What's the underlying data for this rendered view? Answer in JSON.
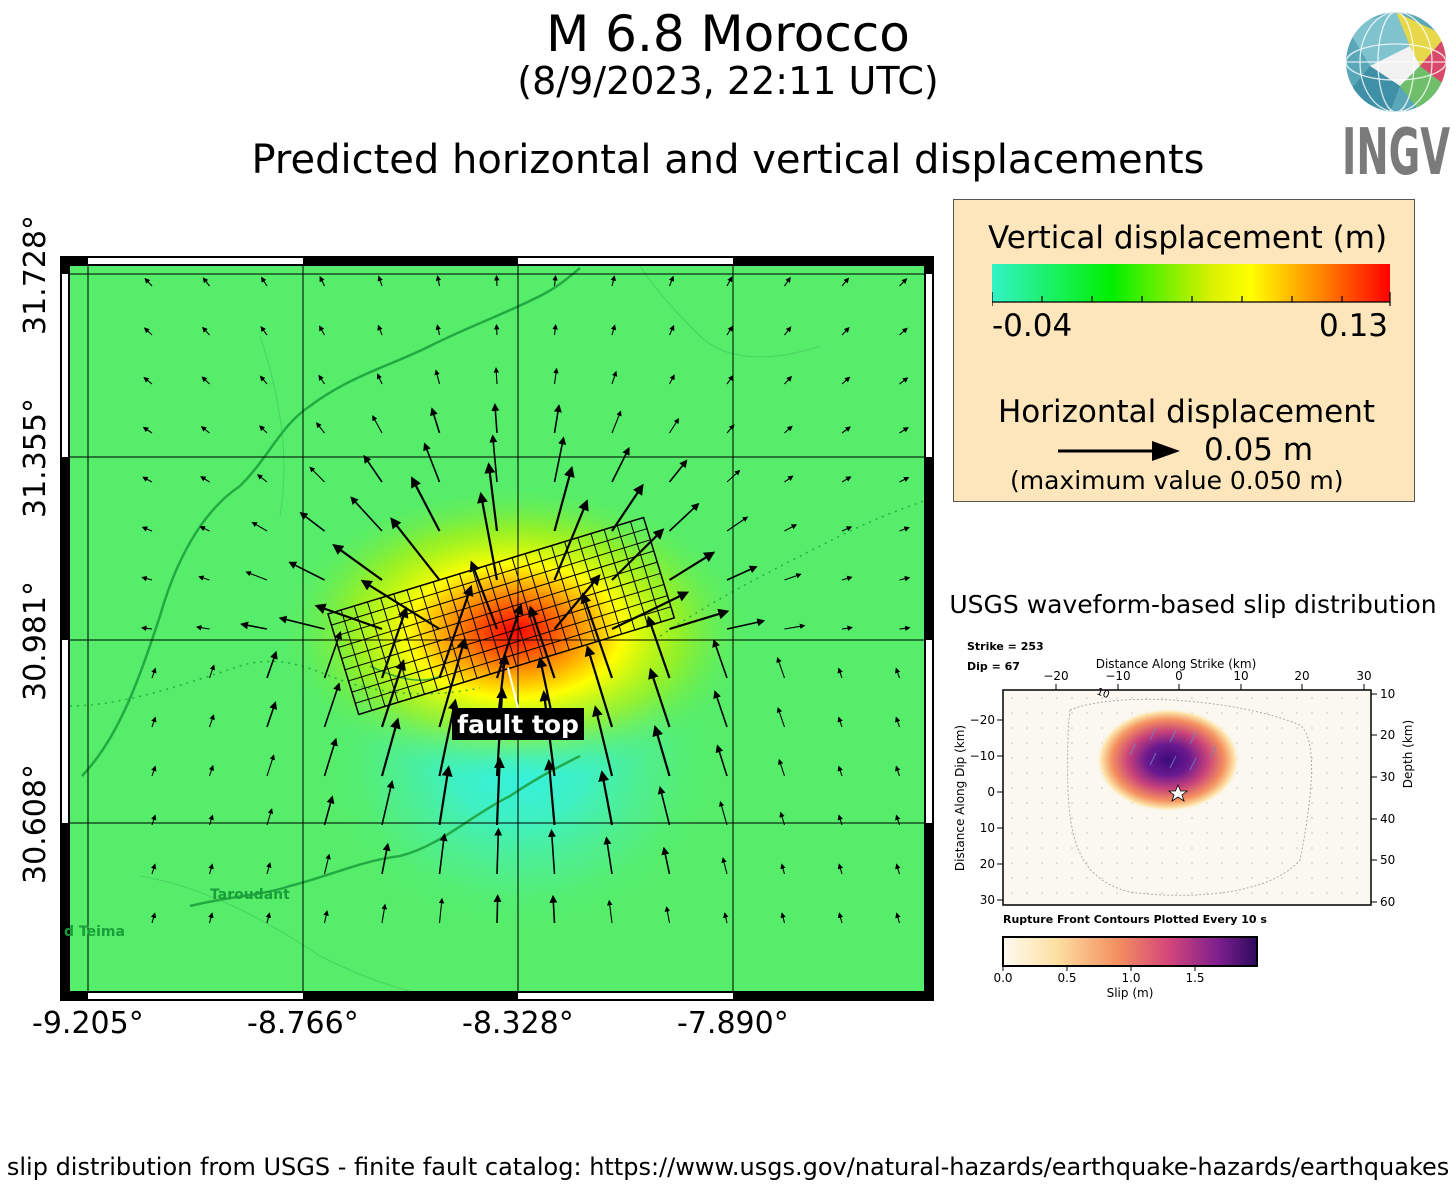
{
  "header": {
    "title": "M 6.8 Morocco",
    "datetime": "(8/9/2023, 22:11 UTC)",
    "subtitle": "Predicted horizontal and vertical displacements"
  },
  "logo": {
    "text": "INGV",
    "icon": "globe-logo-icon"
  },
  "legend": {
    "vertical_title": "Vertical displacement (m)",
    "vmin": "-0.04",
    "vmax": "0.13",
    "horizontal_title": "Horizontal displacement",
    "scale_value": "0.05 m",
    "max_note": "(maximum value 0.050 m)",
    "colors": [
      "#33f2c8",
      "#00f000",
      "#d8f000",
      "#ffff00",
      "#ff8a00",
      "#ff0000"
    ]
  },
  "map": {
    "lat_labels": [
      "31.728°",
      "31.355°",
      "30.981°",
      "30.608°"
    ],
    "lon_labels": [
      "-9.205°",
      "-8.766°",
      "-8.328°",
      "-7.890°"
    ],
    "place_labels": [
      "Taroudant",
      "d Teima"
    ],
    "fault_label": "fault top",
    "background_color": "#55ed6a"
  },
  "slip": {
    "title": "USGS waveform-based slip distribution",
    "strike": "Strike = 253",
    "dip": "Dip = 67",
    "xlabel": "Distance Along Strike (km)",
    "ylabel": "Distance Along Dip (km)",
    "ylabel_right": "Depth (km)",
    "x_ticks": [
      "−20",
      "−10",
      "0",
      "10",
      "20",
      "30"
    ],
    "y_ticks": [
      "−20",
      "−10",
      "0",
      "10",
      "20",
      "30"
    ],
    "depth_ticks": [
      "10",
      "20",
      "30",
      "40",
      "50",
      "60"
    ],
    "contour_label": "10",
    "caption": "Rupture Front Contours Plotted Every 10 s",
    "colorbar_label": "Slip (m)",
    "colorbar_ticks": [
      "0.0",
      "0.5",
      "1.0",
      "1.5"
    ]
  },
  "footer": {
    "text": "S slip distribution from USGS - finite fault catalog: https://www.usgs.gov/natural-hazards/earthquake-hazards/earthquakes"
  }
}
